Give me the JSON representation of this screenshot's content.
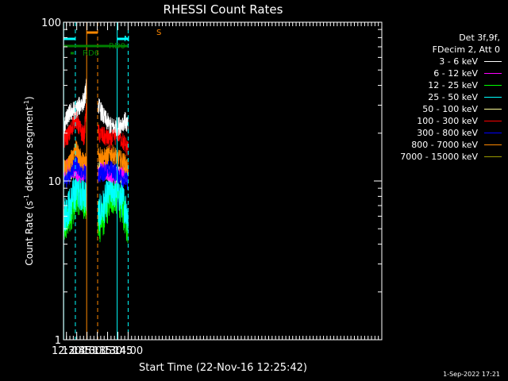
{
  "chart_data": {
    "type": "line",
    "title": "RHESSI Count Rates",
    "xlabel": "Start Time (22-Nov-16 12:25:42)",
    "ylabel_main": "Count Rate (s",
    "ylabel_sup1": "-1",
    "ylabel_mid": " detector segment",
    "ylabel_sup2": "-1",
    "ylabel_end": ")",
    "y_scale": "log",
    "ylim": [
      1,
      100
    ],
    "y_ticks": [
      {
        "value": 1,
        "label": "1"
      },
      {
        "value": 10,
        "label": "10"
      },
      {
        "value": 100,
        "label": "100"
      }
    ],
    "x_range_min": [
      745.7,
      1210
    ],
    "x_ticks": [
      {
        "value": 750,
        "label": "12:30"
      },
      {
        "value": 765,
        "label": "12:45"
      },
      {
        "value": 780,
        "label": "13:00"
      },
      {
        "value": 795,
        "label": "13:15"
      },
      {
        "value": 810,
        "label": "13:30"
      },
      {
        "value": 825,
        "label": "13:45"
      },
      {
        "value": 840,
        "label": "14:00"
      }
    ],
    "data_gaps_min": [
      [
        779.5,
        796
      ]
    ],
    "series": [
      {
        "name": "3 - 6 keV",
        "color": "#ffffff",
        "points": [
          [
            746,
            22
          ],
          [
            755,
            27
          ],
          [
            763,
            28
          ],
          [
            770,
            30
          ],
          [
            776,
            32
          ],
          [
            779.5,
            40
          ],
          [
            796,
            30
          ],
          [
            805,
            25
          ],
          [
            815,
            22
          ],
          [
            825,
            22
          ],
          [
            835,
            24
          ],
          [
            840,
            22
          ]
        ]
      },
      {
        "name": "6 - 12 keV",
        "color": "#ff00ff",
        "points": [
          [
            746,
            12
          ],
          [
            760,
            12
          ],
          [
            770,
            11
          ],
          [
            779.5,
            12
          ],
          [
            796,
            12
          ],
          [
            815,
            11
          ],
          [
            830,
            11
          ],
          [
            840,
            11
          ]
        ]
      },
      {
        "name": "12 - 25 keV",
        "color": "#00ff00",
        "points": [
          [
            746,
            5
          ],
          [
            755,
            6
          ],
          [
            765,
            8
          ],
          [
            772,
            8
          ],
          [
            779.5,
            7
          ],
          [
            796,
            5
          ],
          [
            805,
            6
          ],
          [
            815,
            8
          ],
          [
            825,
            8
          ],
          [
            835,
            6
          ],
          [
            840,
            5
          ]
        ]
      },
      {
        "name": "25 - 50 keV",
        "color": "#00ffff",
        "points": [
          [
            746,
            6
          ],
          [
            755,
            7
          ],
          [
            765,
            9
          ],
          [
            772,
            8.5
          ],
          [
            779.5,
            8
          ],
          [
            796,
            6
          ],
          [
            805,
            7
          ],
          [
            815,
            9
          ],
          [
            825,
            8.5
          ],
          [
            835,
            7
          ],
          [
            840,
            6
          ]
        ]
      },
      {
        "name": "50 - 100 keV",
        "color": "#ffff99",
        "points": [
          [
            746,
            11
          ],
          [
            760,
            12
          ],
          [
            779.5,
            12
          ],
          [
            796,
            12
          ],
          [
            820,
            11
          ],
          [
            840,
            11
          ]
        ]
      },
      {
        "name": "100 - 300 keV",
        "color": "#ff0000",
        "points": [
          [
            746,
            18
          ],
          [
            755,
            20
          ],
          [
            763,
            25
          ],
          [
            770,
            21
          ],
          [
            776,
            19
          ],
          [
            779.5,
            30
          ],
          [
            796,
            20
          ],
          [
            805,
            19
          ],
          [
            815,
            18
          ],
          [
            825,
            20
          ],
          [
            835,
            17
          ],
          [
            840,
            16
          ]
        ]
      },
      {
        "name": "300 - 800 keV",
        "color": "#0000ff",
        "points": [
          [
            746,
            10
          ],
          [
            755,
            11
          ],
          [
            763,
            13
          ],
          [
            770,
            12
          ],
          [
            779.5,
            11
          ],
          [
            796,
            11
          ],
          [
            815,
            12
          ],
          [
            825,
            11
          ],
          [
            840,
            10
          ]
        ]
      },
      {
        "name": "800 - 7000 keV",
        "color": "#ff8800",
        "points": [
          [
            746,
            12
          ],
          [
            755,
            13
          ],
          [
            763,
            16
          ],
          [
            770,
            14
          ],
          [
            776,
            13
          ],
          [
            779.5,
            14
          ],
          [
            796,
            15
          ],
          [
            805,
            14
          ],
          [
            815,
            15
          ],
          [
            825,
            14
          ],
          [
            835,
            13
          ],
          [
            840,
            12
          ]
        ]
      },
      {
        "name": "7000 - 15000 keV",
        "color": "#999900",
        "points": []
      }
    ],
    "annotations": {
      "N_label": "N",
      "S_label": "S",
      "RD0_label": "RD0",
      "RD6_label": "RD6",
      "night_color": "#00ffff",
      "saa_color": "#ff8800",
      "decim_color": "#008000",
      "night_bars_min": [
        [
          746,
          763
        ],
        [
          824,
          840
        ]
      ],
      "night_lines_min": [
        [
          746,
          "solid"
        ],
        [
          763,
          "dashed"
        ],
        [
          824,
          "solid"
        ],
        [
          840,
          "dashed"
        ]
      ],
      "saa_bar_min": [
        779.5,
        795.5
      ],
      "saa_lines_min": [
        [
          779.5,
          "solid"
        ],
        [
          795.5,
          "dashed"
        ]
      ],
      "rd0_bar_min": [
        746,
        840
      ],
      "rd6_bar_min": [
        756,
        761
      ]
    },
    "legend_position": "right"
  },
  "legend": {
    "header_line1": "Det 3f,9f,",
    "header_line2": "FDecim 2, Att 0"
  },
  "footer": "1-Sep-2022 17:21"
}
